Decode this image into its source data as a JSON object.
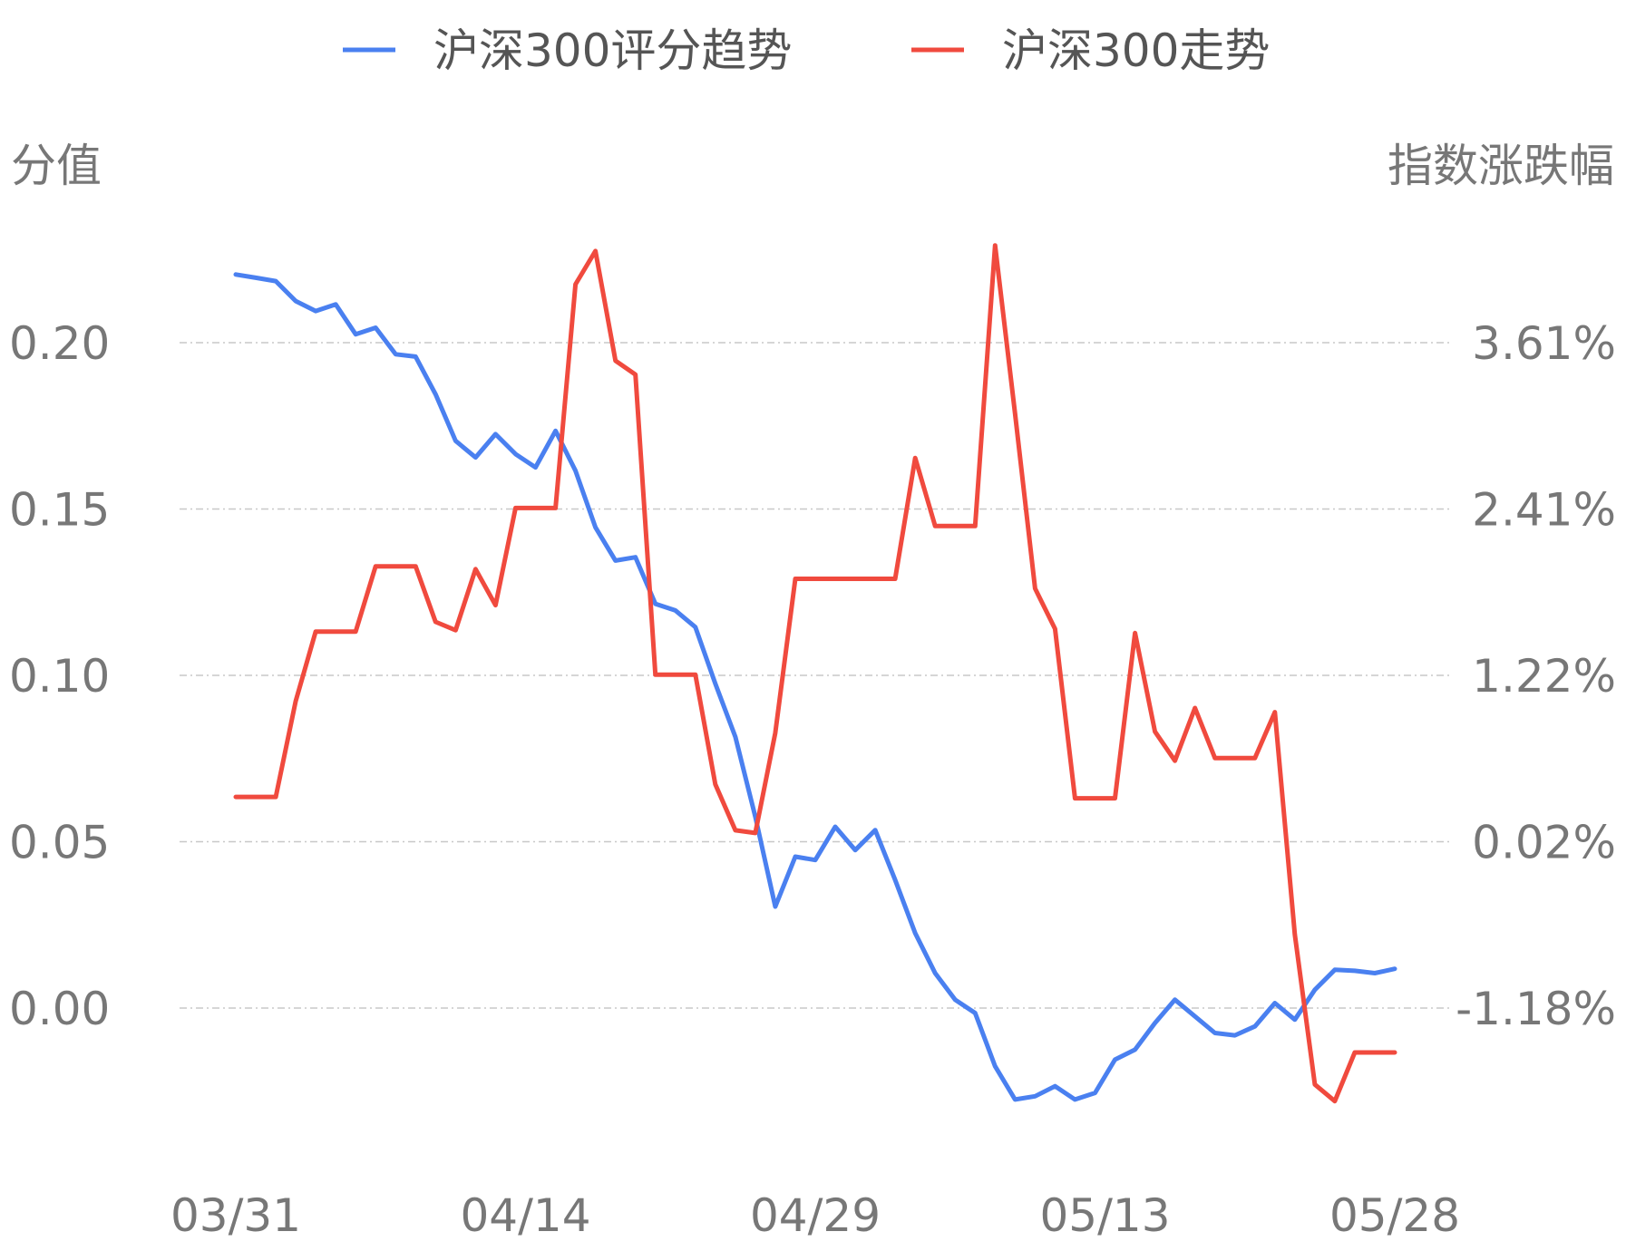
{
  "chart_data": {
    "type": "line",
    "legend_position": "top-center",
    "grid": true,
    "x_ticks": [
      "03/31",
      "04/14",
      "04/29",
      "05/13",
      "05/28"
    ],
    "y_left": {
      "label": "分值",
      "ticks": [
        "0.00",
        "0.05",
        "0.10",
        "0.15",
        "0.20"
      ],
      "tick_values": [
        0.0,
        0.05,
        0.1,
        0.15,
        0.2
      ]
    },
    "y_right": {
      "label": "指数涨跌幅",
      "ticks": [
        "-1.18%",
        "0.02%",
        "1.22%",
        "2.41%",
        "3.61%"
      ],
      "tick_values": [
        -1.18,
        0.02,
        1.22,
        2.41,
        3.61
      ]
    },
    "series": [
      {
        "name": "沪深300评分趋势",
        "axis": "left",
        "color": "#4a80f0",
        "values": [
          0.2205,
          0.2195,
          0.2185,
          0.2125,
          0.2095,
          0.2115,
          0.2025,
          0.2045,
          0.1965,
          0.1958,
          0.1845,
          0.1705,
          0.1655,
          0.1725,
          0.1665,
          0.1625,
          0.1735,
          0.1615,
          0.1445,
          0.1345,
          0.1355,
          0.1215,
          0.1195,
          0.1145,
          0.0975,
          0.0815,
          0.0575,
          0.0305,
          0.0455,
          0.0445,
          0.0545,
          0.0475,
          0.0535,
          0.0385,
          0.0225,
          0.0105,
          0.0025,
          -0.0015,
          -0.0175,
          -0.0275,
          -0.0265,
          -0.0235,
          -0.0275,
          -0.0255,
          -0.0155,
          -0.0125,
          -0.0045,
          0.0025,
          -0.0025,
          -0.0075,
          -0.0082,
          -0.0055,
          0.0015,
          -0.0035,
          0.0055,
          0.0115,
          0.0112,
          0.0105,
          0.0118
        ]
      },
      {
        "name": "沪深300走势",
        "axis": "right",
        "color": "#f04a3e",
        "values": [
          0.34,
          0.34,
          0.34,
          1.03,
          1.53,
          1.53,
          1.53,
          2.0,
          2.0,
          2.0,
          1.6,
          1.54,
          1.98,
          1.72,
          2.42,
          2.42,
          2.42,
          4.03,
          4.27,
          3.48,
          3.38,
          1.22,
          1.22,
          1.22,
          0.43,
          0.1,
          0.08,
          0.8,
          1.91,
          1.91,
          1.91,
          1.91,
          1.91,
          1.91,
          2.78,
          2.29,
          2.29,
          2.29,
          4.31,
          3.1,
          1.84,
          1.55,
          0.33,
          0.33,
          0.33,
          1.52,
          0.81,
          0.6,
          0.98,
          0.62,
          0.62,
          0.62,
          0.95,
          -0.65,
          -1.73,
          -1.85,
          -1.5,
          -1.5,
          -1.5
        ]
      }
    ]
  }
}
